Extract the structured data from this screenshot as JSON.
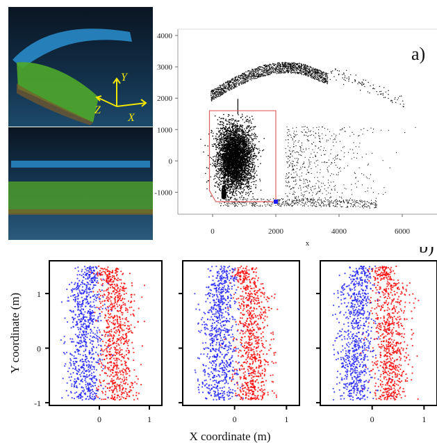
{
  "colors": {
    "lidar_bg_top": "#0b1624",
    "lidar_bg_mid": "#14324a",
    "lidar_blue": "#2a9fd8",
    "lidar_green": "#5fbf2a",
    "axis_yellow": "#f2e600",
    "black_points": "#000000",
    "red_points": "#ff0000",
    "blue_points": "#1a1aff",
    "roi_box": "#e06060"
  },
  "lidar_axes": {
    "y": "Y",
    "z": "Z",
    "x": "X"
  },
  "chart_data": [
    {
      "type": "scatter",
      "panel": "a)",
      "series": [
        {
          "desc": "canopy arc points",
          "color": "#000000",
          "x_range": [
            0,
            6000
          ],
          "y_range": [
            1800,
            3000
          ]
        },
        {
          "desc": "dense tree cluster",
          "color": "#000000",
          "x_center": 700,
          "y_center": 100,
          "x_spread": 500,
          "y_spread": 900
        },
        {
          "desc": "scattered points",
          "color": "#000000",
          "x_range": [
            2500,
            5500
          ],
          "y_range": [
            -1400,
            1200
          ]
        }
      ],
      "x_ticks": [
        "0",
        "2000",
        "4000",
        "6000"
      ],
      "y_ticks": [
        "4000",
        "3000",
        "2000",
        "1000",
        "0",
        "-1000"
      ],
      "xlabel": "x",
      "xlim": [
        -1100,
        7100
      ],
      "ylim": [
        -1700,
        4200
      ],
      "roi": {
        "x_range": [
          0,
          2000
        ],
        "y_range": [
          -1200,
          1600
        ]
      }
    },
    {
      "type": "scatter",
      "panel": "b)",
      "subplots": 3,
      "series": [
        {
          "color": "#1a1aff",
          "x_center": -0.3
        },
        {
          "color": "#ff0000",
          "x_center": 0.35
        }
      ],
      "x_ticks": [
        "0",
        "1"
      ],
      "y_ticks": [
        "1",
        "0",
        "-1"
      ],
      "xlim": [
        -1.0,
        1.25
      ],
      "ylim": [
        -1.05,
        1.6
      ],
      "xlabel": "X coordinate (m)",
      "ylabel": "Y coordinate (m)"
    }
  ]
}
